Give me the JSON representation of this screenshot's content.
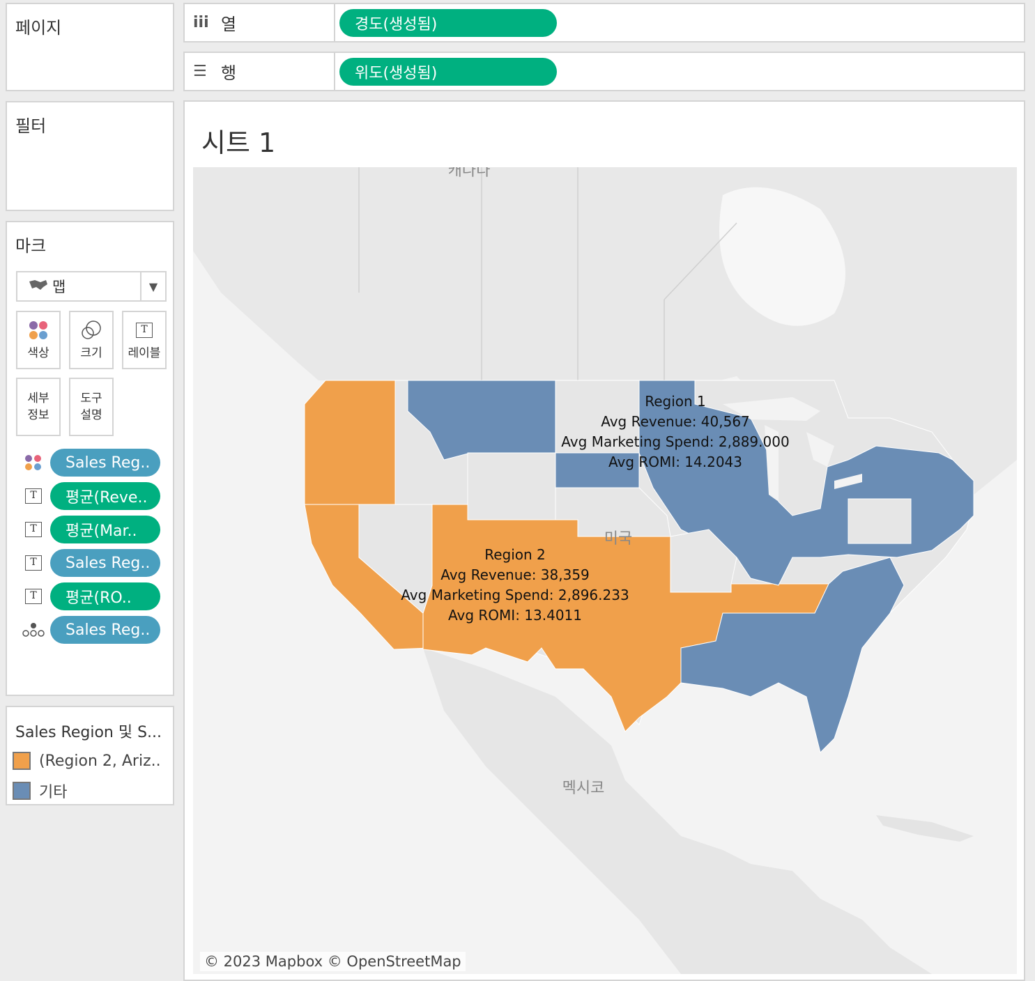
{
  "pages_panel": {
    "title": "페이지"
  },
  "filters_panel": {
    "title": "필터"
  },
  "columns_shelf": {
    "label": "열",
    "icon": "columns-icon",
    "pill": "경도(생성됨)"
  },
  "rows_shelf": {
    "label": "행",
    "icon": "rows-icon",
    "pill": "위도(생성됨)"
  },
  "marks_panel": {
    "title": "마크",
    "mark_type": "맵",
    "buttons": {
      "color": "색상",
      "size": "크기",
      "label": "레이블",
      "detail": "세부\n정보",
      "tooltip": "도구\n설명"
    },
    "fields": [
      {
        "icon": "color-icon",
        "label": "Sales Reg..",
        "kind": "dimension"
      },
      {
        "icon": "text-icon",
        "label": "평균(Reve..",
        "kind": "measure"
      },
      {
        "icon": "text-icon",
        "label": "평균(Mar..",
        "kind": "measure"
      },
      {
        "icon": "text-icon",
        "label": "Sales Reg..",
        "kind": "dimension"
      },
      {
        "icon": "text-icon",
        "label": "평균(RO..",
        "kind": "measure"
      },
      {
        "icon": "detail-icon",
        "label": "Sales Reg..",
        "kind": "dimension"
      }
    ]
  },
  "legend": {
    "title": "Sales Region 및 S...",
    "items": [
      {
        "label": "(Region 2, Ariz..",
        "color": "#f0a04b"
      },
      {
        "label": "기타",
        "color": "#6a8db5"
      }
    ]
  },
  "sheet": {
    "title": "시트 1",
    "copyright": "© 2023 Mapbox © OpenStreetMap",
    "geo_labels": {
      "canada": "캐나다",
      "usa": "미국",
      "mexico": "멕시코"
    },
    "colors": {
      "region2": "#f0a04b",
      "other": "#6a8db5",
      "unselected": "#e6e6e6"
    },
    "annotations": [
      {
        "lines": [
          "Region 1",
          "Avg Revenue: 40,567",
          "Avg Marketing Spend: 2,889.000",
          "Avg ROMI: 14.2043"
        ]
      },
      {
        "lines": [
          "Region 2",
          "Avg Revenue: 38,359",
          "Avg Marketing Spend: 2,896.233",
          "Avg ROMI: 13.4011"
        ]
      }
    ]
  }
}
